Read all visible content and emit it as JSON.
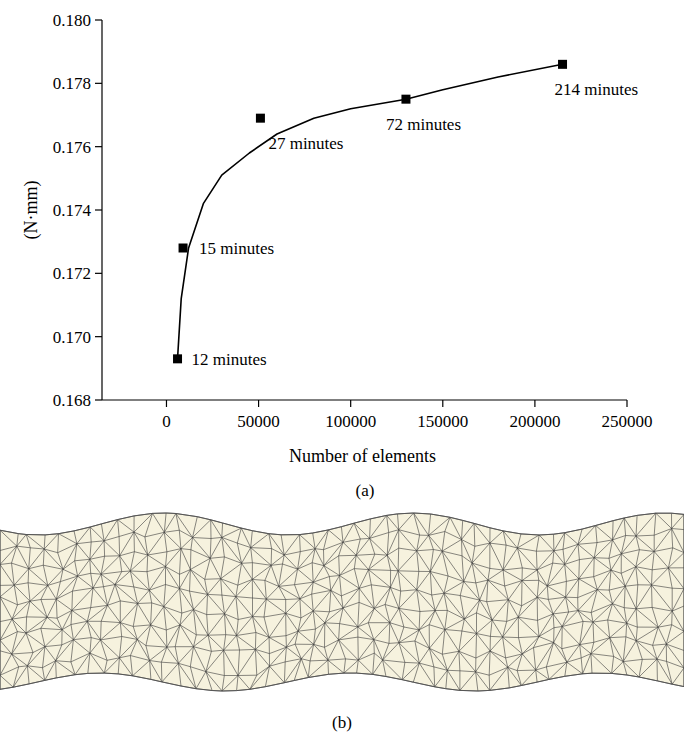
{
  "chart_data": {
    "type": "scatter",
    "caption": "(a)",
    "x_label": "Number of elements",
    "y_label": "(N·mm)",
    "xlim": [
      -35000,
      250000
    ],
    "xticks": [
      0,
      50000,
      100000,
      150000,
      200000,
      250000
    ],
    "ylim": [
      0.168,
      0.18
    ],
    "yticks": [
      0.168,
      {
        "value": 0.17,
        "label": "0.170"
      },
      0.172,
      0.174,
      0.176,
      0.178,
      {
        "value": 0.18,
        "label": "0.180"
      }
    ],
    "grid": false,
    "series": [
      {
        "type": "scatter",
        "marker": "square",
        "color": "#000000",
        "x": [
          6000,
          9000,
          51000,
          130000,
          215000
        ],
        "values": [
          0.1693,
          0.1728,
          0.1769,
          0.1775,
          0.1786
        ],
        "annotations": [
          "12 minutes",
          "15 minutes",
          "27 minutes",
          "72 minutes",
          "214 minutes"
        ]
      },
      {
        "type": "line",
        "line_style": "solid",
        "color": "#000000",
        "x": [
          6000,
          8000,
          12000,
          20000,
          30000,
          45000,
          60000,
          80000,
          100000,
          130000,
          150000,
          180000,
          215000
        ],
        "values": [
          0.1693,
          0.1712,
          0.1728,
          0.1742,
          0.1751,
          0.1758,
          0.1764,
          0.1769,
          0.1772,
          0.1775,
          0.1778,
          0.1782,
          0.1786
        ]
      }
    ]
  },
  "mesh": {
    "caption": "(b)"
  }
}
